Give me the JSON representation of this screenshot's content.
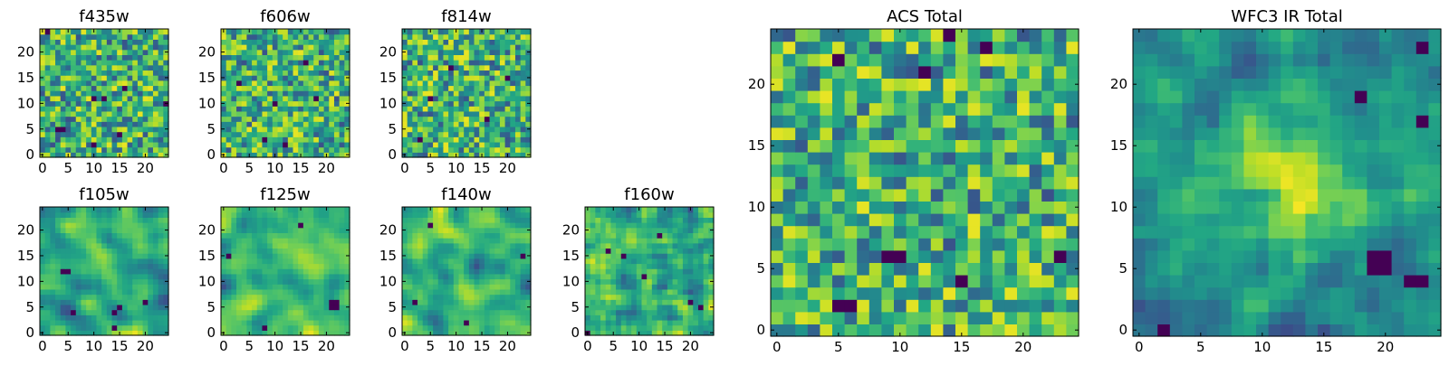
{
  "figure": {
    "description_colormap": "viridis",
    "colors": {
      "low": "#440154",
      "mid": "#21918c",
      "high": "#fde725"
    }
  },
  "chart_data": [
    {
      "type": "heatmap",
      "title": "f435w",
      "grid_size": 25,
      "xlim": [
        -0.5,
        24.5
      ],
      "ylim": [
        -0.5,
        24.5
      ],
      "xticks": [
        0,
        5,
        10,
        15,
        20
      ],
      "yticks": [
        0,
        5,
        10,
        15,
        20
      ],
      "seed": 435,
      "smoothing": 0,
      "hotspots": [
        [
          3,
          5
        ],
        [
          4,
          5
        ],
        [
          10,
          2
        ],
        [
          15,
          4
        ],
        [
          1,
          24
        ],
        [
          24,
          10
        ],
        [
          16,
          13
        ],
        [
          10,
          11
        ],
        [
          12,
          11
        ]
      ]
    },
    {
      "type": "heatmap",
      "title": "f606w",
      "grid_size": 25,
      "xlim": [
        -0.5,
        24.5
      ],
      "ylim": [
        -0.5,
        24.5
      ],
      "xticks": [
        0,
        5,
        10,
        15,
        20
      ],
      "yticks": [
        0,
        5,
        10,
        15,
        20
      ],
      "seed": 606,
      "smoothing": 0,
      "hotspots": [
        [
          8,
          3
        ],
        [
          3,
          14
        ],
        [
          10,
          10
        ],
        [
          12,
          2
        ],
        [
          16,
          18
        ],
        [
          18,
          11
        ]
      ]
    },
    {
      "type": "heatmap",
      "title": "f814w",
      "grid_size": 25,
      "xlim": [
        -0.5,
        24.5
      ],
      "ylim": [
        -0.5,
        24.5
      ],
      "xticks": [
        0,
        5,
        10,
        15,
        20
      ],
      "yticks": [
        0,
        5,
        10,
        15,
        20
      ],
      "seed": 814,
      "smoothing": 0,
      "hotspots": [
        [
          3,
          3
        ],
        [
          9,
          17
        ],
        [
          20,
          15
        ],
        [
          5,
          11
        ],
        [
          16,
          7
        ]
      ]
    },
    {
      "type": "heatmap",
      "title": "f105w",
      "grid_size": 25,
      "xlim": [
        -0.5,
        24.5
      ],
      "ylim": [
        -0.5,
        24.5
      ],
      "xticks": [
        0,
        5,
        10,
        15,
        20
      ],
      "yticks": [
        0,
        5,
        10,
        15,
        20
      ],
      "seed": 105,
      "smoothing": 2,
      "hotspots": [
        [
          4,
          12
        ],
        [
          5,
          12
        ],
        [
          14,
          4
        ],
        [
          15,
          5
        ],
        [
          20,
          6
        ],
        [
          14,
          1
        ],
        [
          6,
          4
        ]
      ]
    },
    {
      "type": "heatmap",
      "title": "f125w",
      "grid_size": 25,
      "xlim": [
        -0.5,
        24.5
      ],
      "ylim": [
        -0.5,
        24.5
      ],
      "xticks": [
        0,
        5,
        10,
        15,
        20
      ],
      "yticks": [
        0,
        5,
        10,
        15,
        20
      ],
      "seed": 125,
      "smoothing": 2,
      "hotspots": [
        [
          21,
          6
        ],
        [
          22,
          6
        ],
        [
          22,
          5
        ],
        [
          21,
          5
        ],
        [
          1,
          15
        ],
        [
          15,
          21
        ],
        [
          8,
          1
        ]
      ]
    },
    {
      "type": "heatmap",
      "title": "f140w",
      "grid_size": 25,
      "xlim": [
        -0.5,
        24.5
      ],
      "ylim": [
        -0.5,
        24.5
      ],
      "xticks": [
        0,
        5,
        10,
        15,
        20
      ],
      "yticks": [
        0,
        5,
        10,
        15,
        20
      ],
      "seed": 140,
      "smoothing": 2,
      "hotspots": [
        [
          5,
          21
        ],
        [
          23,
          15
        ],
        [
          12,
          2
        ],
        [
          2,
          6
        ]
      ]
    },
    {
      "type": "heatmap",
      "title": "f160w",
      "grid_size": 25,
      "xlim": [
        -0.5,
        24.5
      ],
      "ylim": [
        -0.5,
        24.5
      ],
      "xticks": [
        0,
        5,
        10,
        15,
        20
      ],
      "yticks": [
        0,
        5,
        10,
        15,
        20
      ],
      "seed": 160,
      "smoothing": 1,
      "hotspots": [
        [
          4,
          16
        ],
        [
          7,
          15
        ],
        [
          20,
          6
        ],
        [
          22,
          5
        ],
        [
          0,
          0
        ],
        [
          11,
          11
        ],
        [
          14,
          19
        ]
      ]
    },
    {
      "type": "heatmap",
      "title": "ACS Total",
      "grid_size": 25,
      "xlim": [
        -0.5,
        24.5
      ],
      "ylim": [
        -0.5,
        24.5
      ],
      "xticks": [
        0,
        5,
        10,
        15,
        20
      ],
      "yticks": [
        0,
        5,
        10,
        15,
        20
      ],
      "seed": 2016,
      "smoothing": 0,
      "hotspots": [
        [
          9,
          6
        ],
        [
          10,
          6
        ],
        [
          5,
          2
        ],
        [
          6,
          2
        ],
        [
          15,
          4
        ],
        [
          12,
          21
        ],
        [
          17,
          23
        ],
        [
          14,
          24
        ],
        [
          5,
          22
        ],
        [
          23,
          6
        ]
      ]
    },
    {
      "type": "heatmap",
      "title": "WFC3 IR Total",
      "grid_size": 25,
      "xlim": [
        -0.5,
        24.5
      ],
      "ylim": [
        -0.5,
        24.5
      ],
      "xticks": [
        0,
        5,
        10,
        15,
        20
      ],
      "yticks": [
        0,
        5,
        10,
        15,
        20
      ],
      "seed": 3000,
      "smoothing": 1,
      "center_peak": [
        12,
        12
      ],
      "hotspots": [
        [
          19,
          5
        ],
        [
          20,
          5
        ],
        [
          19,
          6
        ],
        [
          20,
          6
        ],
        [
          22,
          4
        ],
        [
          23,
          4
        ],
        [
          2,
          0
        ],
        [
          23,
          17
        ],
        [
          23,
          23
        ],
        [
          18,
          19
        ]
      ]
    }
  ]
}
